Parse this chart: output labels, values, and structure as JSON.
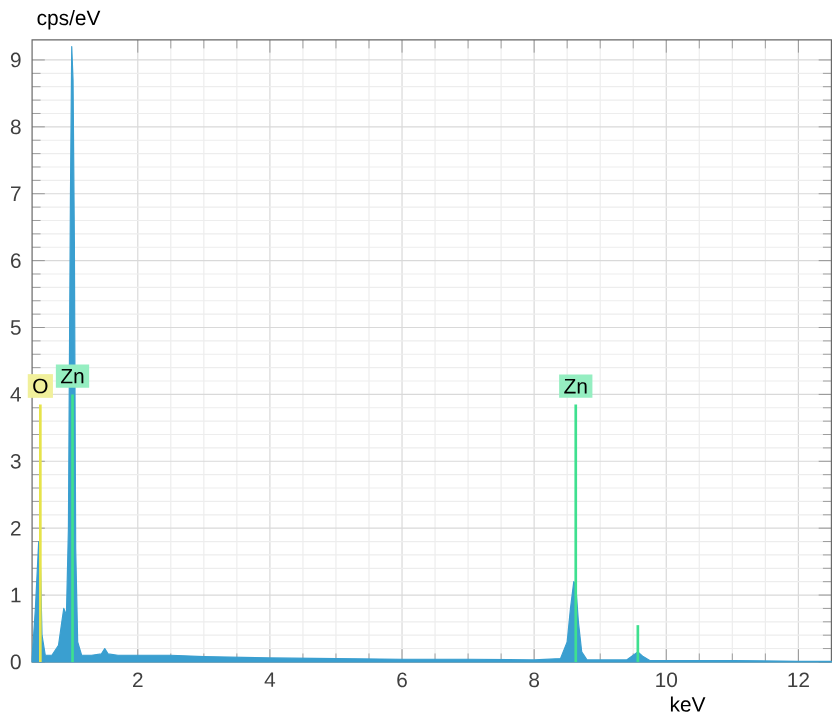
{
  "chart_data": {
    "type": "area",
    "xlabel": "keV",
    "ylabel": "cps/eV",
    "xlim": [
      0.4,
      12.5
    ],
    "ylim": [
      0,
      9.3
    ],
    "xticks": [
      2,
      4,
      6,
      8,
      10,
      12
    ],
    "yticks": [
      0,
      1,
      2,
      3,
      4,
      5,
      6,
      7,
      8,
      9
    ],
    "grid": true,
    "series": [
      {
        "color": "#3a9fd0",
        "x": [
          0.4,
          0.45,
          0.5,
          0.525,
          0.55,
          0.6,
          0.7,
          0.8,
          0.85,
          0.88,
          0.92,
          0.95,
          0.98,
          1.0,
          1.02,
          1.04,
          1.06,
          1.09,
          1.15,
          1.3,
          1.45,
          1.5,
          1.55,
          1.7,
          2.0,
          2.5,
          3,
          4,
          5,
          6,
          7,
          8,
          8.4,
          8.5,
          8.55,
          8.6,
          8.63,
          8.67,
          8.72,
          8.8,
          9.4,
          9.5,
          9.57,
          9.65,
          9.75,
          10,
          11,
          12,
          12.5
        ],
        "values": [
          0.05,
          0.8,
          1.8,
          1.5,
          0.4,
          0.1,
          0.1,
          0.25,
          0.6,
          0.8,
          0.7,
          2.0,
          6.9,
          9.2,
          8.7,
          6.3,
          1.7,
          0.3,
          0.1,
          0.1,
          0.12,
          0.2,
          0.12,
          0.1,
          0.1,
          0.1,
          0.08,
          0.06,
          0.05,
          0.04,
          0.04,
          0.03,
          0.05,
          0.3,
          0.8,
          1.2,
          1.15,
          0.6,
          0.15,
          0.03,
          0.03,
          0.1,
          0.15,
          0.08,
          0.02,
          0.02,
          0.02,
          0.01,
          0.01
        ]
      },
      {
        "type": "bar",
        "color": "#e6e34a",
        "x": [
          0.525
        ],
        "values": [
          3.85
        ]
      },
      {
        "type": "bar",
        "color": "#3fe08f",
        "x": [
          1.012,
          8.63,
          9.57
        ],
        "values": [
          4.0,
          3.85,
          0.55
        ]
      }
    ],
    "annotations": [
      {
        "text": "O",
        "x": 0.525,
        "y": 3.85
      },
      {
        "text": "Zn",
        "x": 1.012,
        "y": 4.0
      },
      {
        "text": "Zn",
        "x": 8.63,
        "y": 3.85
      }
    ]
  }
}
